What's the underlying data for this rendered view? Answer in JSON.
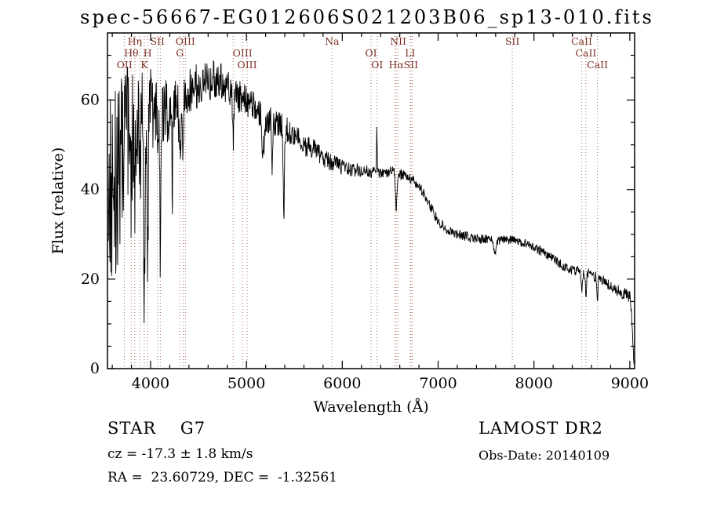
{
  "chart_data": {
    "type": "line",
    "title": "spec-56667-EG012606S021203B06_sp13-010.fits",
    "xlabel": "Wavelength (Å)",
    "ylabel": "Flux (relative)",
    "xlim": [
      3550,
      9050
    ],
    "ylim": [
      0,
      75
    ],
    "xticks_major": [
      4000,
      5000,
      6000,
      7000,
      8000,
      9000
    ],
    "yticks_major": [
      0,
      20,
      40,
      60
    ],
    "x_minor_step": 200,
    "y_minor_step": 5,
    "grid": false,
    "legend": false,
    "line_color": "#000000",
    "marker_color": "#aa6a5f",
    "label_color": "#7b2f23",
    "spectral_lines": [
      {
        "wavelength": 3727,
        "label": "OII",
        "row": 3
      },
      {
        "wavelength": 3798,
        "label": "Hθ",
        "row": 2
      },
      {
        "wavelength": 3835,
        "label": "Hη",
        "row": 1
      },
      {
        "wavelength": 3889,
        "label": "",
        "row": 0
      },
      {
        "wavelength": 3934,
        "label": "K",
        "row": 3
      },
      {
        "wavelength": 3969,
        "label": "H",
        "row": 2
      },
      {
        "wavelength": 4072,
        "label": "SII",
        "row": 1
      },
      {
        "wavelength": 4102,
        "label": "",
        "row": 0
      },
      {
        "wavelength": 4305,
        "label": "G",
        "row": 2
      },
      {
        "wavelength": 4340,
        "label": "",
        "row": 0
      },
      {
        "wavelength": 4363,
        "label": "OIII",
        "row": 1
      },
      {
        "wavelength": 4861,
        "label": "",
        "row": 0
      },
      {
        "wavelength": 4959,
        "label": "OIII",
        "row": 2
      },
      {
        "wavelength": 5007,
        "label": "OIII",
        "row": 3
      },
      {
        "wavelength": 5893,
        "label": "Na",
        "row": 1
      },
      {
        "wavelength": 6300,
        "label": "OI",
        "row": 2
      },
      {
        "wavelength": 6363,
        "label": "OI",
        "row": 3
      },
      {
        "wavelength": 6548,
        "label": "",
        "row": 0
      },
      {
        "wavelength": 6583,
        "label": "NII",
        "row": 1
      },
      {
        "wavelength": 6563,
        "label": "Hα",
        "row": 3
      },
      {
        "wavelength": 6708,
        "label": "LI",
        "row": 2
      },
      {
        "wavelength": 6716,
        "label": "SII",
        "row": 3
      },
      {
        "wavelength": 6731,
        "label": "",
        "row": 0
      },
      {
        "wavelength": 7774,
        "label": "SII",
        "row": 1
      },
      {
        "wavelength": 8498,
        "label": "CaII",
        "row": 1
      },
      {
        "wavelength": 8542,
        "label": "CaII",
        "row": 2
      },
      {
        "wavelength": 8662,
        "label": "CaII",
        "row": 3
      }
    ],
    "continuum": [
      [
        3550,
        30
      ],
      [
        3600,
        38
      ],
      [
        3650,
        44
      ],
      [
        3700,
        48
      ],
      [
        3750,
        52
      ],
      [
        3800,
        54
      ],
      [
        3850,
        55
      ],
      [
        3900,
        56
      ],
      [
        3950,
        55
      ],
      [
        4000,
        57
      ],
      [
        4050,
        56
      ],
      [
        4100,
        55
      ],
      [
        4150,
        57
      ],
      [
        4200,
        58
      ],
      [
        4250,
        59
      ],
      [
        4300,
        60
      ],
      [
        4350,
        60
      ],
      [
        4400,
        62
      ],
      [
        4450,
        63
      ],
      [
        4500,
        63
      ],
      [
        4600,
        64
      ],
      [
        4700,
        65
      ],
      [
        4800,
        63
      ],
      [
        4900,
        61
      ],
      [
        5000,
        60
      ],
      [
        5100,
        58
      ],
      [
        5200,
        56
      ],
      [
        5300,
        55
      ],
      [
        5400,
        54
      ],
      [
        5500,
        52
      ],
      [
        5600,
        50
      ],
      [
        5700,
        49
      ],
      [
        5800,
        47
      ],
      [
        5900,
        46
      ],
      [
        6000,
        45
      ],
      [
        6100,
        44.5
      ],
      [
        6200,
        44
      ],
      [
        6300,
        44
      ],
      [
        6400,
        44
      ],
      [
        6500,
        44
      ],
      [
        6600,
        43.5
      ],
      [
        6700,
        42.5
      ],
      [
        6800,
        41
      ],
      [
        6900,
        37
      ],
      [
        7000,
        33
      ],
      [
        7100,
        31
      ],
      [
        7200,
        30
      ],
      [
        7300,
        29.5
      ],
      [
        7400,
        29
      ],
      [
        7500,
        29
      ],
      [
        7600,
        28.5
      ],
      [
        7700,
        29
      ],
      [
        7800,
        28.5
      ],
      [
        7900,
        28
      ],
      [
        8000,
        27
      ],
      [
        8100,
        26
      ],
      [
        8200,
        24.5
      ],
      [
        8300,
        23
      ],
      [
        8400,
        22
      ],
      [
        8500,
        21.5
      ],
      [
        8600,
        21
      ],
      [
        8700,
        20
      ],
      [
        8800,
        18.5
      ],
      [
        8900,
        17
      ],
      [
        9000,
        16
      ],
      [
        9010,
        15
      ],
      [
        9030,
        6
      ],
      [
        9045,
        1
      ]
    ],
    "noise_amplitude": [
      [
        3550,
        28
      ],
      [
        3600,
        26
      ],
      [
        3650,
        22
      ],
      [
        3700,
        18
      ],
      [
        3800,
        14
      ],
      [
        3900,
        12
      ],
      [
        4000,
        10
      ],
      [
        4100,
        8
      ],
      [
        4200,
        7
      ],
      [
        4300,
        6
      ],
      [
        4400,
        5.5
      ],
      [
        4500,
        5
      ],
      [
        4700,
        4.5
      ],
      [
        5000,
        3.5
      ],
      [
        5300,
        3
      ],
      [
        5600,
        2.5
      ],
      [
        6000,
        1.8
      ],
      [
        6400,
        1.4
      ],
      [
        6800,
        1.2
      ],
      [
        7200,
        1.1
      ],
      [
        7600,
        1.0
      ],
      [
        8000,
        1.0
      ],
      [
        8400,
        1.1
      ],
      [
        8800,
        1.3
      ],
      [
        9045,
        1.4
      ]
    ],
    "absorption_features": [
      [
        3798,
        12,
        14
      ],
      [
        3835,
        14,
        14
      ],
      [
        3889,
        16,
        14
      ],
      [
        3934,
        40,
        14
      ],
      [
        3969,
        35,
        14
      ],
      [
        4102,
        30,
        10
      ],
      [
        4227,
        18,
        10
      ],
      [
        4305,
        15,
        20
      ],
      [
        4340,
        15,
        12
      ],
      [
        4861,
        10,
        18
      ],
      [
        5175,
        8,
        28
      ],
      [
        5270,
        10,
        14
      ],
      [
        5390,
        20,
        16
      ],
      [
        6563,
        9,
        16
      ],
      [
        7594,
        3,
        25
      ],
      [
        8498,
        4,
        14
      ],
      [
        8542,
        5,
        14
      ],
      [
        8662,
        5,
        14
      ]
    ],
    "emission_features": [
      [
        6360,
        9,
        8
      ]
    ],
    "noise_seed": 20140109,
    "sample_range": [
      3560,
      9045
    ],
    "sample_step": 4
  },
  "footer": {
    "left": {
      "class_line": "STAR    G7",
      "cz_line": "cz = -17.3 ± 1.8 km/s",
      "radec_line": "RA =  23.60729, DEC =  -1.32561"
    },
    "right": {
      "survey": "LAMOST DR2",
      "obs_date": "Obs-Date: 20140109"
    }
  }
}
